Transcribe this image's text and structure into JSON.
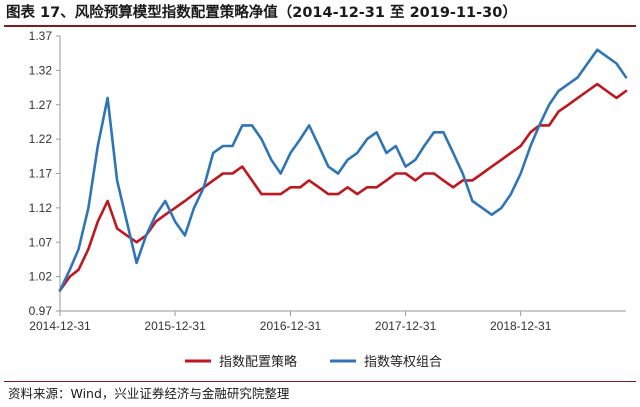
{
  "figure": {
    "title": "图表 17、风险预算模型指数配置策略净值（2014-12-31 至 2019-11-30）",
    "source": "资料来源：Wind，兴业证券经济与金融研究院整理"
  },
  "colors": {
    "series1": "#c0161d",
    "series2": "#2e75b6",
    "axis": "#999999",
    "rule": "#7f1d1d"
  },
  "chart_data": {
    "type": "line",
    "title": "",
    "xlabel": "",
    "ylabel": "",
    "ylim": [
      0.97,
      1.37
    ],
    "yticks": [
      "1.37",
      "1.32",
      "1.27",
      "1.22",
      "1.17",
      "1.12",
      "1.07",
      "1.02",
      "0.97"
    ],
    "xticks": [
      "2014-12-31",
      "2015-12-31",
      "2016-12-31",
      "2017-12-31",
      "2018-12-31"
    ],
    "grid": false,
    "legend_position": "bottom",
    "x": [
      "2014-12-31",
      "2015-01-31",
      "2015-02-28",
      "2015-03-31",
      "2015-04-30",
      "2015-05-31",
      "2015-06-30",
      "2015-07-31",
      "2015-08-31",
      "2015-09-30",
      "2015-10-31",
      "2015-11-30",
      "2015-12-31",
      "2016-01-31",
      "2016-02-29",
      "2016-03-31",
      "2016-04-30",
      "2016-05-31",
      "2016-06-30",
      "2016-07-31",
      "2016-08-31",
      "2016-09-30",
      "2016-10-31",
      "2016-11-30",
      "2016-12-31",
      "2017-01-31",
      "2017-02-28",
      "2017-03-31",
      "2017-04-30",
      "2017-05-31",
      "2017-06-30",
      "2017-07-31",
      "2017-08-31",
      "2017-09-30",
      "2017-10-31",
      "2017-11-30",
      "2017-12-31",
      "2018-01-31",
      "2018-02-28",
      "2018-03-31",
      "2018-04-30",
      "2018-05-31",
      "2018-06-30",
      "2018-07-31",
      "2018-08-31",
      "2018-09-30",
      "2018-10-31",
      "2018-11-30",
      "2018-12-31",
      "2019-01-31",
      "2019-02-28",
      "2019-03-31",
      "2019-04-30",
      "2019-05-31",
      "2019-06-30",
      "2019-07-31",
      "2019-08-31",
      "2019-09-30",
      "2019-10-31",
      "2019-11-30"
    ],
    "series": [
      {
        "name": "指数配置策略",
        "color": "#c0161d",
        "values": [
          1.0,
          1.02,
          1.03,
          1.06,
          1.1,
          1.13,
          1.09,
          1.08,
          1.07,
          1.08,
          1.1,
          1.11,
          1.12,
          1.13,
          1.14,
          1.15,
          1.16,
          1.17,
          1.17,
          1.18,
          1.16,
          1.14,
          1.14,
          1.14,
          1.15,
          1.15,
          1.16,
          1.15,
          1.14,
          1.14,
          1.15,
          1.14,
          1.15,
          1.15,
          1.16,
          1.17,
          1.17,
          1.16,
          1.17,
          1.17,
          1.16,
          1.15,
          1.16,
          1.16,
          1.17,
          1.18,
          1.19,
          1.2,
          1.21,
          1.23,
          1.24,
          1.24,
          1.26,
          1.27,
          1.28,
          1.29,
          1.3,
          1.29,
          1.28,
          1.29
        ]
      },
      {
        "name": "指数等权组合",
        "color": "#2e75b6",
        "values": [
          1.0,
          1.03,
          1.06,
          1.12,
          1.21,
          1.28,
          1.16,
          1.1,
          1.04,
          1.08,
          1.11,
          1.13,
          1.1,
          1.08,
          1.12,
          1.15,
          1.2,
          1.21,
          1.21,
          1.24,
          1.24,
          1.22,
          1.19,
          1.17,
          1.2,
          1.22,
          1.24,
          1.21,
          1.18,
          1.17,
          1.19,
          1.2,
          1.22,
          1.23,
          1.2,
          1.21,
          1.18,
          1.19,
          1.21,
          1.23,
          1.23,
          1.2,
          1.17,
          1.13,
          1.12,
          1.11,
          1.12,
          1.14,
          1.17,
          1.21,
          1.24,
          1.27,
          1.29,
          1.3,
          1.31,
          1.33,
          1.35,
          1.34,
          1.33,
          1.31
        ]
      }
    ]
  }
}
